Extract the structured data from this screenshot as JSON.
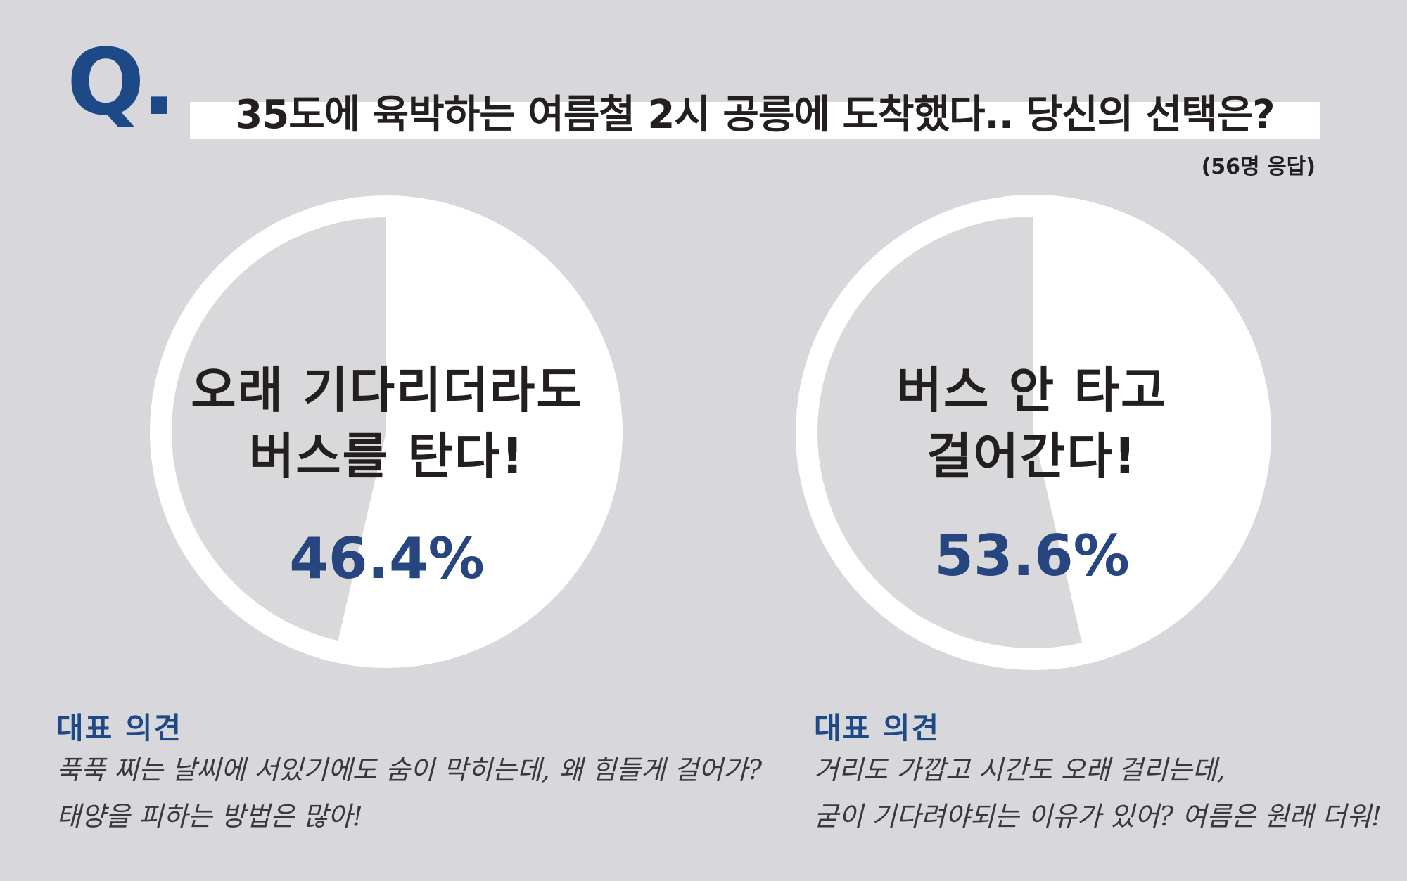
{
  "header": {
    "q_mark": "Q.",
    "title": "35도에 육박하는 여름철 2시 공릉에 도착했다.. 당신의 선택은?",
    "respondents": "(56명 응답)"
  },
  "colors": {
    "background": "#d8d8dc",
    "slice_main": "#ffffff",
    "slice_other": "#d9d9db",
    "accent_blue": "#1d4a86",
    "percent_blue": "#27457e"
  },
  "chart_data": [
    {
      "type": "pie",
      "option_lines": [
        "오래 기다리더라도",
        "버스를 탄다!"
      ],
      "value": 46.4,
      "value_label": "46.4%",
      "slices": [
        {
          "label": "오래 기다리더라도 버스를 탄다!",
          "value": 46.4,
          "color": "#d9d9db"
        },
        {
          "label": "other",
          "value": 53.6,
          "color": "#ffffff"
        }
      ]
    },
    {
      "type": "pie",
      "option_lines": [
        "버스 안 타고",
        "걸어간다!"
      ],
      "value": 53.6,
      "value_label": "53.6%",
      "slices": [
        {
          "label": "버스 안 타고 걸어간다!",
          "value": 53.6,
          "color": "#d9d9db"
        },
        {
          "label": "other",
          "value": 46.4,
          "color": "#ffffff"
        }
      ]
    }
  ],
  "opinions": [
    {
      "heading": "대표 의견",
      "lines": [
        "푹푹 찌는 날씨에 서있기에도 숨이 막히는데, 왜 힘들게 걸어가?",
        "태양을 피하는 방법은 많아!"
      ]
    },
    {
      "heading": "대표 의견",
      "lines": [
        "거리도 가깝고 시간도 오래 걸리는데,",
        "굳이 기다려야되는 이유가 있어? 여름은 원래 더워!"
      ]
    }
  ]
}
